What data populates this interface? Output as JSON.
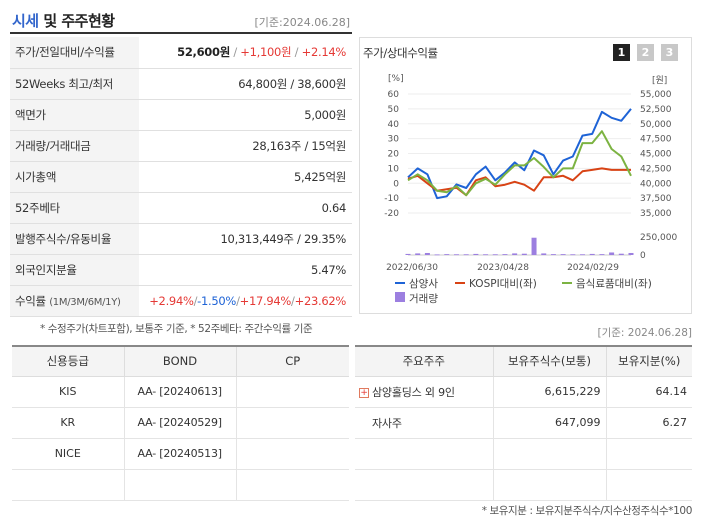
{
  "header": {
    "title_part1": "시세",
    "title_part2": " 및 주주현황",
    "date": "[기준:2024.06.28]"
  },
  "rows": {
    "price": {
      "label": "주가/전일대비/수익률",
      "price": "52,600원",
      "sep1": " / ",
      "change": "+1,100원",
      "sep2": " / ",
      "pct": "+2.14%"
    },
    "weeks52": {
      "label": "52Weeks 최고/최저",
      "value": "64,800원 / 38,600원"
    },
    "par": {
      "label": "액면가",
      "value": "5,000원"
    },
    "volume": {
      "label": "거래량/거래대금",
      "value": "28,163주 / 15억원"
    },
    "mcap": {
      "label": "시가총액",
      "value": "5,425억원"
    },
    "beta": {
      "label": "52주베타",
      "value": "0.64"
    },
    "shares": {
      "label": "발행주식수/유동비율",
      "value": "10,313,449주 / 29.35%"
    },
    "foreign": {
      "label": "외국인지분율",
      "value": "5.47%"
    },
    "returns": {
      "label": "수익률",
      "sublabel": "(1M/3M/6M/1Y)",
      "r1": "+2.94%",
      "r2": "-1.50%",
      "r3": "+17.94%",
      "r4": "+23.62%",
      "sep": "/"
    }
  },
  "note1": "* 수정주가(차트포함), 보통주 기준, * 52주베타: 주간수익률 기준",
  "date2": "[기준: 2024.06.28]",
  "chart_panel": {
    "title": "주가/상대수익률",
    "period_buttons": [
      "1",
      "2",
      "3"
    ],
    "active_period": "1"
  },
  "chart_data": {
    "type": "line",
    "left_axis": {
      "unit": "[%]",
      "ticks": [
        "60",
        "50",
        "40",
        "30",
        "20",
        "10",
        "0",
        "-10",
        "-20"
      ],
      "ylim": [
        -20,
        60
      ]
    },
    "right_axis": {
      "unit": "[원]",
      "ticks": [
        "55,000",
        "52,500",
        "50,000",
        "47,500",
        "45,000",
        "42,500",
        "40,000",
        "37,500",
        "35,000"
      ],
      "ylim": [
        35000,
        55000
      ]
    },
    "volume_axis": {
      "ticks": [
        "250,000",
        "0"
      ],
      "ylim": [
        0,
        250000
      ]
    },
    "x_ticks": [
      "2022/06/30",
      "2023/04/28",
      "2024/02/29"
    ],
    "series": [
      {
        "name": "삼양사",
        "axis": "right",
        "color": "#1e63d6",
        "values": [
          41000,
          42500,
          41500,
          37500,
          37800,
          39800,
          39200,
          41500,
          42800,
          40500,
          41800,
          43500,
          42200,
          45500,
          44700,
          41500,
          43800,
          44500,
          48000,
          48300,
          52000,
          51000,
          50500,
          52500
        ]
      },
      {
        "name": "KOSPI대비(좌)",
        "axis": "left",
        "color": "#d84315",
        "values": [
          3,
          5,
          0,
          -5,
          -4,
          -3,
          -8,
          2,
          4,
          -2,
          -1,
          1,
          -1,
          -5,
          4,
          4,
          5,
          2,
          8,
          9,
          10,
          9,
          9,
          9
        ]
      },
      {
        "name": "음식료품대비(좌)",
        "axis": "left",
        "color": "#7cb342",
        "values": [
          2,
          6,
          2,
          -5,
          -6,
          -2,
          -8,
          0,
          3,
          -1,
          6,
          12,
          12,
          17,
          11,
          4,
          10,
          10,
          27,
          27,
          35,
          23,
          18,
          5
        ]
      },
      {
        "name": "거래량",
        "axis": "volume",
        "color": "#9c7fe0",
        "kind": "bar",
        "values": [
          15000,
          22000,
          28000,
          8000,
          12000,
          10000,
          10000,
          15000,
          10000,
          10000,
          12000,
          22000,
          18000,
          240000,
          22000,
          12000,
          12000,
          10000,
          10000,
          15000,
          12000,
          35000,
          18000,
          28000
        ]
      }
    ]
  },
  "credit": {
    "headers": [
      "신용등급",
      "BOND",
      "CP"
    ],
    "rows": [
      {
        "agency": "KIS",
        "bond": "AA- [20240613]",
        "cp": ""
      },
      {
        "agency": "KR",
        "bond": "AA- [20240529]",
        "cp": ""
      },
      {
        "agency": "NICE",
        "bond": "AA- [20240513]",
        "cp": ""
      },
      {
        "agency": "",
        "bond": "",
        "cp": ""
      }
    ]
  },
  "holders": {
    "headers": [
      "주요주주",
      "보유주식수(보통)",
      "보유지분(%)"
    ],
    "rows": [
      {
        "name": "삼양홀딩스 외 9인",
        "shares": "6,615,229",
        "pct": "64.14",
        "expand": "+"
      },
      {
        "name": "자사주",
        "shares": "647,099",
        "pct": "6.27",
        "expand": ""
      },
      {
        "name": "",
        "shares": "",
        "pct": "",
        "expand": ""
      },
      {
        "name": "",
        "shares": "",
        "pct": "",
        "expand": ""
      }
    ]
  },
  "note2": "* 보유지분 : 보유지분주식수/지수산정주식수*100"
}
